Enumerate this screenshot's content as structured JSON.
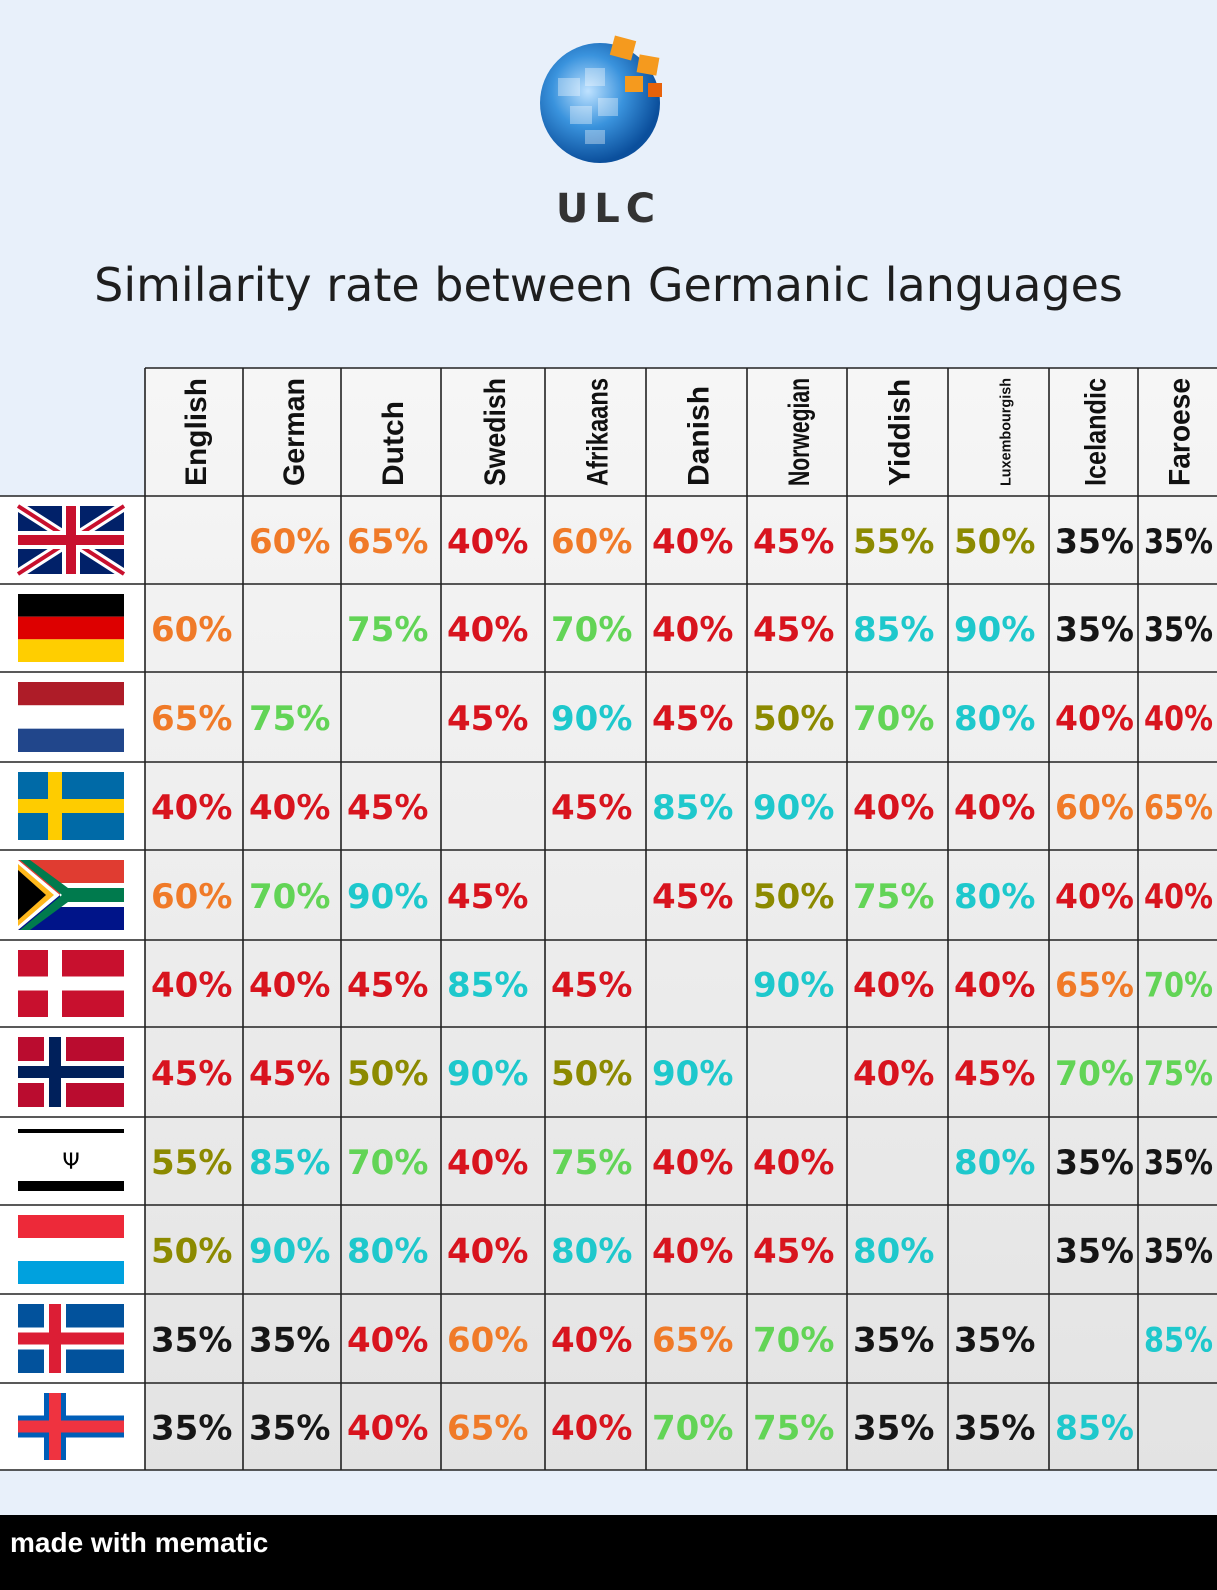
{
  "brand": "ULC",
  "title": "Similarity rate between Germanic languages",
  "watermark": "made with mematic",
  "colors": {
    "c35": "#161616",
    "c40": "#d8141e",
    "c45": "#d8141e",
    "c50": "#8c8a00",
    "c55": "#8c8a00",
    "c60": "#f07a28",
    "c65": "#f07a28",
    "c70": "#62d456",
    "c75": "#62d456",
    "c80": "#1ec8cc",
    "c85": "#1ec8cc",
    "c90": "#1ec8cc"
  },
  "chart_data": {
    "type": "table",
    "languages": [
      "English",
      "German",
      "Dutch",
      "Swedish",
      "Afrikaans",
      "Danish",
      "Norwegian",
      "Yiddish",
      "Luxembourgish",
      "Icelandic",
      "Faroese"
    ],
    "flags": [
      "uk-flag-icon",
      "germany-flag-icon",
      "netherlands-flag-icon",
      "sweden-flag-icon",
      "south-africa-flag-icon",
      "denmark-flag-icon",
      "norway-flag-icon",
      "yiddish-flag-icon",
      "luxembourg-flag-icon",
      "iceland-flag-icon",
      "faroe-flag-icon"
    ],
    "matrix": [
      [
        null,
        "60%",
        "65%",
        "40%",
        "60%",
        "40%",
        "45%",
        "55%",
        "50%",
        "35%",
        "35%"
      ],
      [
        "60%",
        null,
        "75%",
        "40%",
        "70%",
        "40%",
        "45%",
        "85%",
        "90%",
        "35%",
        "35%"
      ],
      [
        "65%",
        "75%",
        null,
        "45%",
        "90%",
        "45%",
        "50%",
        "70%",
        "80%",
        "40%",
        "40%"
      ],
      [
        "40%",
        "40%",
        "45%",
        null,
        "45%",
        "85%",
        "90%",
        "40%",
        "40%",
        "60%",
        "65%"
      ],
      [
        "60%",
        "70%",
        "90%",
        "45%",
        null,
        "45%",
        "50%",
        "75%",
        "80%",
        "40%",
        "40%"
      ],
      [
        "40%",
        "40%",
        "45%",
        "85%",
        "45%",
        null,
        "90%",
        "40%",
        "40%",
        "65%",
        "70%"
      ],
      [
        "45%",
        "45%",
        "50%",
        "90%",
        "50%",
        "90%",
        null,
        "40%",
        "45%",
        "70%",
        "75%"
      ],
      [
        "55%",
        "85%",
        "70%",
        "40%",
        "75%",
        "40%",
        "40%",
        null,
        "80%",
        "35%",
        "35%"
      ],
      [
        "50%",
        "90%",
        "80%",
        "40%",
        "80%",
        "40%",
        "45%",
        "80%",
        null,
        "35%",
        "35%"
      ],
      [
        "35%",
        "35%",
        "40%",
        "60%",
        "40%",
        "65%",
        "70%",
        "35%",
        "35%",
        null,
        "85%"
      ],
      [
        "35%",
        "35%",
        "40%",
        "65%",
        "40%",
        "70%",
        "75%",
        "35%",
        "35%",
        "85%",
        null
      ]
    ]
  }
}
